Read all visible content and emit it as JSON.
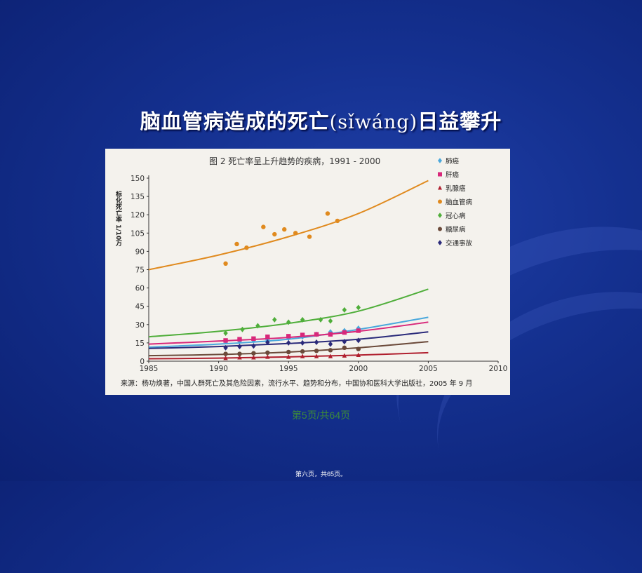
{
  "slide": {
    "title_main": "脑血管病造成的死亡",
    "title_pinyin": "(sǐwáng)",
    "title_tail": "日益攀升",
    "page_indicator": "第5页/共64页",
    "footer_note": "第六页，共65页。"
  },
  "chart_data": {
    "type": "line",
    "title": "图 2    死亡率呈上升趋势的疾病，1991 - 2000",
    "ylabel": "标化死亡率  1/10万",
    "xlim": [
      1985,
      2010
    ],
    "ylim": [
      0,
      150
    ],
    "x_ticks": [
      1985,
      1990,
      1995,
      2000,
      2005,
      2010
    ],
    "y_ticks": [
      0,
      15,
      30,
      45,
      60,
      75,
      90,
      105,
      120,
      135,
      150
    ],
    "legend_position": "top-right",
    "source_note": "来源：杨功焕著，中国人群死亡及其危险因素，流行水平、趋势和分布，中国协和医科大学出版社，2005 年 9 月",
    "series": [
      {
        "name": "肺癌",
        "color": "#4aa8dc",
        "marker": "diamond",
        "trend": [
          [
            1985,
            11.5
          ],
          [
            1990,
            14
          ],
          [
            1995,
            18
          ],
          [
            2000,
            26
          ],
          [
            2005,
            36
          ]
        ],
        "points": [
          [
            1990.5,
            16
          ],
          [
            1991.5,
            16.5
          ],
          [
            1992.5,
            17
          ],
          [
            1993.5,
            17.5
          ],
          [
            1995,
            19
          ],
          [
            1996,
            20
          ],
          [
            1997,
            22
          ],
          [
            1998,
            24
          ],
          [
            1999,
            25
          ],
          [
            2000,
            27
          ]
        ]
      },
      {
        "name": "肝癌",
        "color": "#d8287a",
        "marker": "square",
        "trend": [
          [
            1985,
            14
          ],
          [
            1990,
            16.5
          ],
          [
            1995,
            19.5
          ],
          [
            2000,
            24.5
          ],
          [
            2005,
            32
          ]
        ],
        "points": [
          [
            1990.5,
            17
          ],
          [
            1991.5,
            18
          ],
          [
            1992.5,
            18.5
          ],
          [
            1993.5,
            20
          ],
          [
            1995,
            20.5
          ],
          [
            1996,
            21.5
          ],
          [
            1997,
            22
          ],
          [
            1998,
            22
          ],
          [
            1999,
            23.5
          ],
          [
            2000,
            25
          ]
        ]
      },
      {
        "name": "乳腺癌",
        "color": "#b01f2e",
        "marker": "triangle",
        "trend": [
          [
            1985,
            2
          ],
          [
            1990,
            2.5
          ],
          [
            1995,
            3.5
          ],
          [
            2000,
            5
          ],
          [
            2005,
            7
          ]
        ],
        "points": [
          [
            1990.5,
            2.5
          ],
          [
            1991.5,
            3
          ],
          [
            1992.5,
            3
          ],
          [
            1993.5,
            3.5
          ],
          [
            1995,
            3.5
          ],
          [
            1996,
            4
          ],
          [
            1997,
            4
          ],
          [
            1998,
            4
          ],
          [
            1999,
            4.5
          ],
          [
            2000,
            5
          ]
        ]
      },
      {
        "name": "脑血管病",
        "color": "#e08a1e",
        "marker": "circle",
        "trend": [
          [
            1985,
            75
          ],
          [
            1990,
            87
          ],
          [
            1995,
            102
          ],
          [
            2000,
            121
          ],
          [
            2005,
            148
          ]
        ],
        "points": [
          [
            1990.5,
            80
          ],
          [
            1991.3,
            96
          ],
          [
            1992,
            93
          ],
          [
            1993.2,
            110
          ],
          [
            1994,
            104
          ],
          [
            1994.7,
            108
          ],
          [
            1995.5,
            105
          ],
          [
            1996.5,
            102
          ],
          [
            1997.8,
            121
          ],
          [
            1998.5,
            115
          ]
        ]
      },
      {
        "name": "冠心病",
        "color": "#4fae3a",
        "marker": "diamond",
        "trend": [
          [
            1985,
            20
          ],
          [
            1990,
            24.5
          ],
          [
            1995,
            31
          ],
          [
            2000,
            41
          ],
          [
            2005,
            59
          ]
        ],
        "points": [
          [
            1990.5,
            23
          ],
          [
            1991.7,
            26
          ],
          [
            1992.8,
            29
          ],
          [
            1994,
            34
          ],
          [
            1995,
            32
          ],
          [
            1996,
            34
          ],
          [
            1997.3,
            34
          ],
          [
            1998,
            33
          ],
          [
            1999,
            42
          ],
          [
            2000,
            44
          ]
        ]
      },
      {
        "name": "糖尿病",
        "color": "#6b4a3a",
        "marker": "circle",
        "trend": [
          [
            1985,
            4.5
          ],
          [
            1990,
            5.5
          ],
          [
            1995,
            7.5
          ],
          [
            2000,
            11
          ],
          [
            2005,
            16
          ]
        ],
        "points": [
          [
            1990.5,
            6
          ],
          [
            1991.5,
            6
          ],
          [
            1992.5,
            6.5
          ],
          [
            1993.5,
            7
          ],
          [
            1995,
            7.5
          ],
          [
            1996,
            8
          ],
          [
            1997,
            8.5
          ],
          [
            1998,
            9
          ],
          [
            1999,
            11
          ],
          [
            2000,
            10
          ]
        ]
      },
      {
        "name": "交通事故",
        "color": "#2a2a7a",
        "marker": "diamond",
        "trend": [
          [
            1985,
            10.5
          ],
          [
            1990,
            12
          ],
          [
            1995,
            14.5
          ],
          [
            2000,
            18
          ],
          [
            2005,
            24
          ]
        ],
        "points": [
          [
            1990.5,
            11
          ],
          [
            1991.5,
            12
          ],
          [
            1992.5,
            12.5
          ],
          [
            1993.5,
            15.5
          ],
          [
            1995,
            15
          ],
          [
            1996,
            15
          ],
          [
            1997,
            15.5
          ],
          [
            1998,
            14
          ],
          [
            1999,
            16
          ],
          [
            2000,
            17
          ]
        ]
      }
    ]
  }
}
